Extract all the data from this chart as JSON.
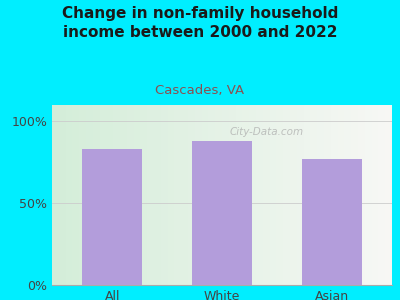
{
  "title": "Change in non-family household\nincome between 2000 and 2022",
  "subtitle": "Cascades, VA",
  "categories": [
    "All",
    "White",
    "Asian"
  ],
  "values": [
    83,
    88,
    77
  ],
  "bar_color": "#b39ddb",
  "background_outer": "#00eeff",
  "title_color": "#1a1a1a",
  "subtitle_color": "#8B5050",
  "tick_color": "#444444",
  "yticks": [
    0,
    50,
    100
  ],
  "ytick_labels": [
    "0%",
    "50%",
    "100%"
  ],
  "ylim": [
    0,
    110
  ],
  "watermark": "City-Data.com",
  "title_fontsize": 11,
  "subtitle_fontsize": 9.5,
  "tick_fontsize": 9
}
